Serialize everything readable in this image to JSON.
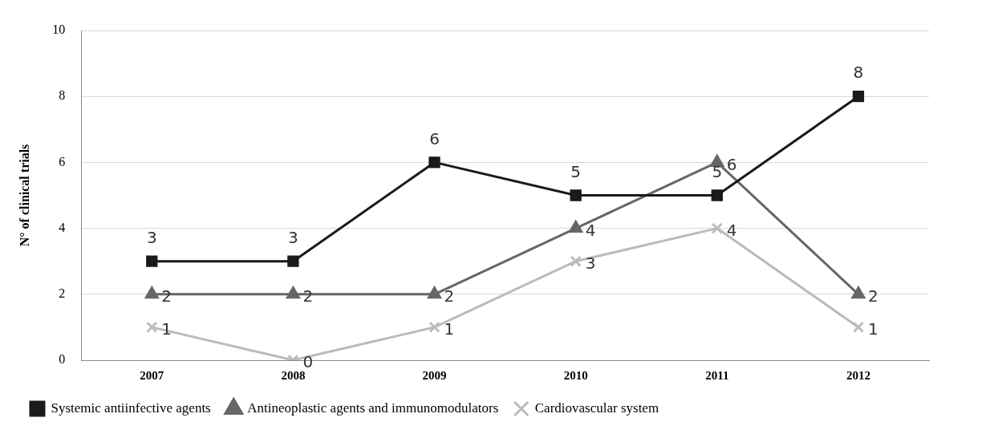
{
  "chart_data": {
    "type": "line",
    "ylabel": "N° of clinical trials",
    "categories": [
      "2007",
      "2008",
      "2009",
      "2010",
      "2011",
      "2012"
    ],
    "series": [
      {
        "name": "Systemic antiinfective agents",
        "color": "#1a1a1a",
        "marker": "square",
        "values": [
          3,
          3,
          6,
          5,
          5,
          8
        ]
      },
      {
        "name": "Antineoplastic agents and immunomodulators",
        "color": "#666666",
        "marker": "triangle",
        "values": [
          2,
          2,
          2,
          4,
          6,
          2
        ]
      },
      {
        "name": "Cardiovascular system",
        "color": "#bbbbbb",
        "marker": "cross",
        "values": [
          1,
          0,
          1,
          3,
          4,
          1
        ]
      }
    ],
    "ylim": [
      0,
      10
    ],
    "yticks": [
      0,
      2,
      4,
      6,
      8,
      10
    ],
    "grid": "y",
    "legend": "bottom",
    "data_labels": true,
    "line_style": "solid"
  }
}
